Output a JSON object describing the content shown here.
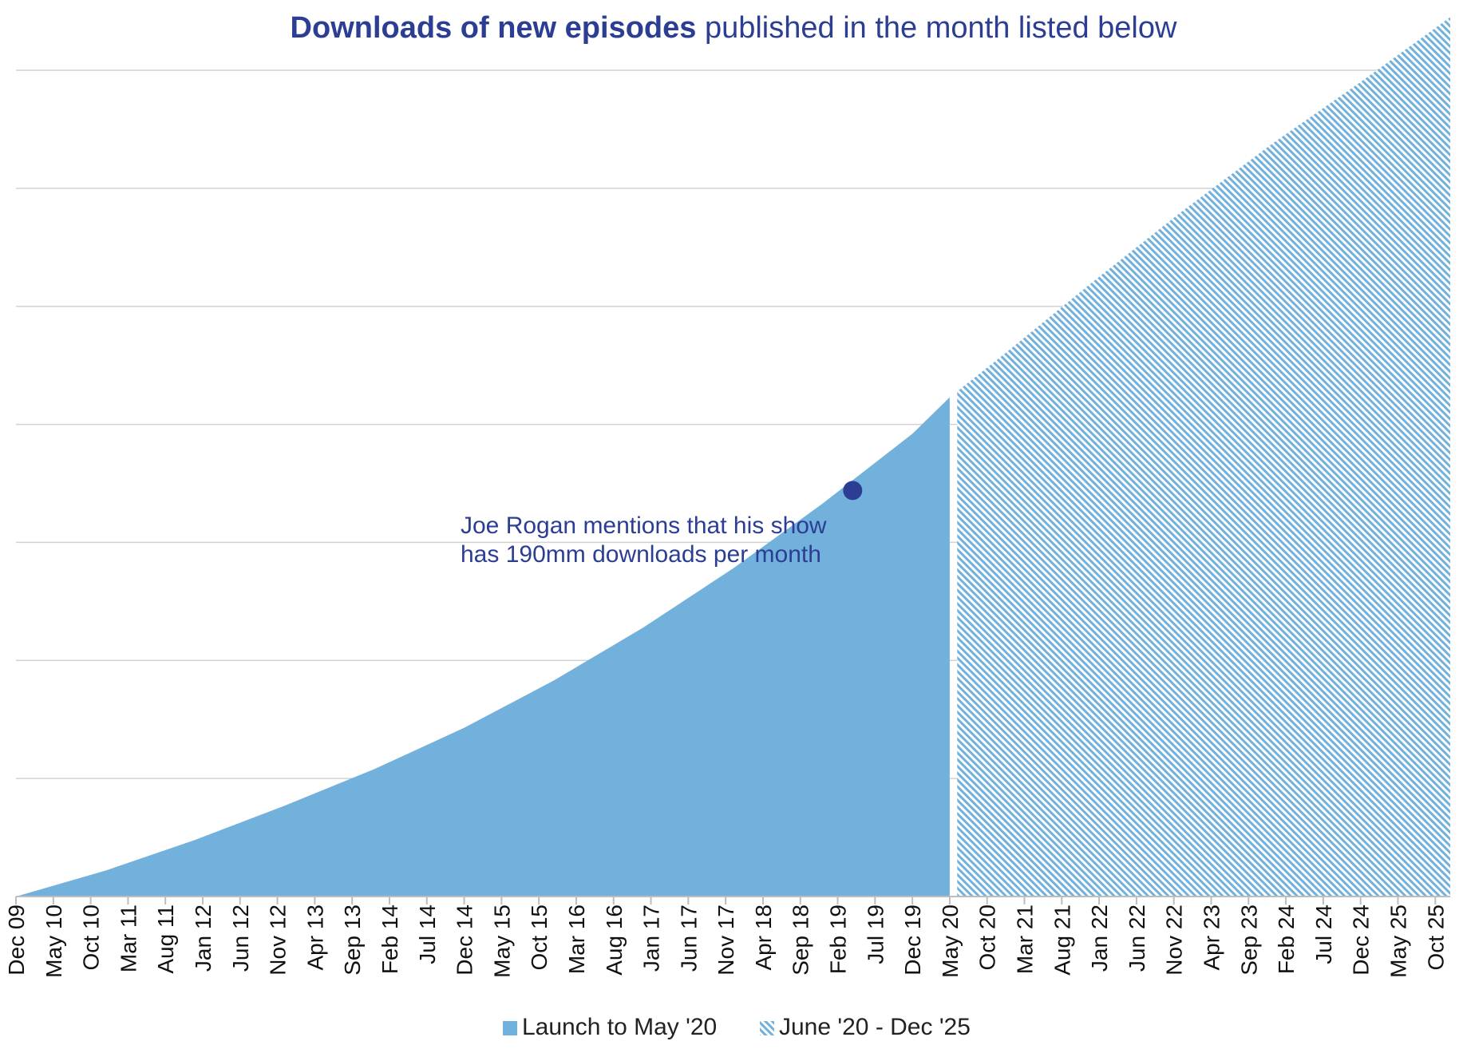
{
  "chart_data": {
    "type": "area",
    "title_bold": "Downloads of new episodes",
    "title_rest": "published in the month listed below",
    "x_labels": [
      "Dec 09",
      "May 10",
      "Oct 10",
      "Mar 11",
      "Aug 11",
      "Jan 12",
      "Jun 12",
      "Nov 12",
      "Apr 13",
      "Sep 13",
      "Feb 14",
      "Jul 14",
      "Dec 14",
      "May 15",
      "Oct 15",
      "Mar 16",
      "Aug 16",
      "Jan 17",
      "Jun 17",
      "Nov 17",
      "Apr 18",
      "Sep 18",
      "Feb 19",
      "Jul 19",
      "Dec 19",
      "May 20",
      "Oct 20",
      "Mar 21",
      "Aug 21",
      "Jan 22",
      "Jun 22",
      "Nov 22",
      "Apr 23",
      "Sep 23",
      "Feb 24",
      "Jul 24",
      "Dec 24",
      "May 25",
      "Oct 25"
    ],
    "x_range": [
      "Dec 09",
      "Dec 25"
    ],
    "y_gridlines": 7,
    "y_tick_labels_shown": false,
    "grid": true,
    "series": [
      {
        "name": "Launch to May '20",
        "style": "solid",
        "color": "#72b1dc",
        "x": [
          "Dec 09",
          "Dec 10",
          "Dec 11",
          "Dec 12",
          "Dec 13",
          "Dec 14",
          "Dec 15",
          "Dec 16",
          "Dec 17",
          "Dec 18",
          "Dec 19",
          "May 20"
        ],
        "y": [
          0.0,
          0.22,
          0.48,
          0.77,
          1.08,
          1.43,
          1.83,
          2.28,
          2.78,
          3.33,
          3.92,
          4.23
        ]
      },
      {
        "name": "June '20 - Dec '25",
        "style": "hatched",
        "color": "#72b1dc",
        "x": [
          "Jun 20",
          "Dec 20",
          "Dec 21",
          "Dec 22",
          "Dec 23",
          "Dec 24",
          "Dec 25"
        ],
        "y": [
          4.28,
          4.58,
          5.2,
          5.8,
          6.37,
          6.9,
          7.45
        ]
      }
    ],
    "annotation": {
      "lines": [
        "Joe Rogan mentions that his show",
        "has 190mm downloads per month"
      ],
      "point_x": "Apr 19",
      "point_y": 3.44,
      "color": "#2c3e94"
    },
    "legend": {
      "position": "bottom-center",
      "items": [
        "Launch to May '20",
        "June '20 - Dec '25"
      ]
    }
  }
}
